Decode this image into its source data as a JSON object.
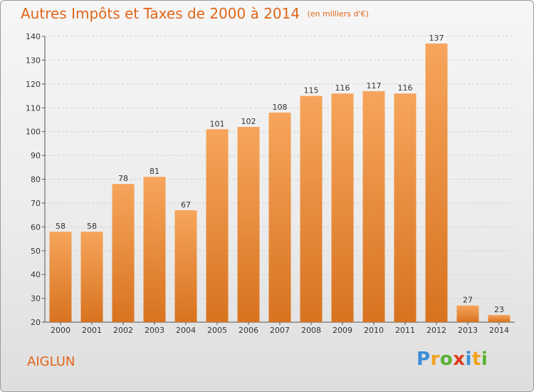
{
  "header": {
    "title": "Autres Impôts et Taxes de 2000 à 2014",
    "subtitle": "(en milliers d'€)"
  },
  "footer": {
    "location": "AIGLUN",
    "brand": "Proxiti"
  },
  "colors": {
    "accent": "#e0661a",
    "bar_top": "#f6a55c",
    "bar_bottom": "#d8731f"
  },
  "chart_data": {
    "type": "bar",
    "title": "Autres Impôts et Taxes de 2000 à 2014",
    "subtitle": "(en milliers d'€)",
    "xlabel": "",
    "ylabel": "",
    "categories": [
      "2000",
      "2001",
      "2002",
      "2003",
      "2004",
      "2005",
      "2006",
      "2007",
      "2008",
      "2009",
      "2010",
      "2011",
      "2012",
      "2013",
      "2014"
    ],
    "values": [
      58,
      58,
      78,
      81,
      67,
      101,
      102,
      108,
      115,
      116,
      117,
      116,
      137,
      27,
      23
    ],
    "ylim": [
      20,
      140
    ],
    "yticks": [
      20,
      30,
      40,
      50,
      60,
      70,
      80,
      90,
      100,
      110,
      120,
      130,
      140
    ],
    "grid": true,
    "data_labels": true
  }
}
